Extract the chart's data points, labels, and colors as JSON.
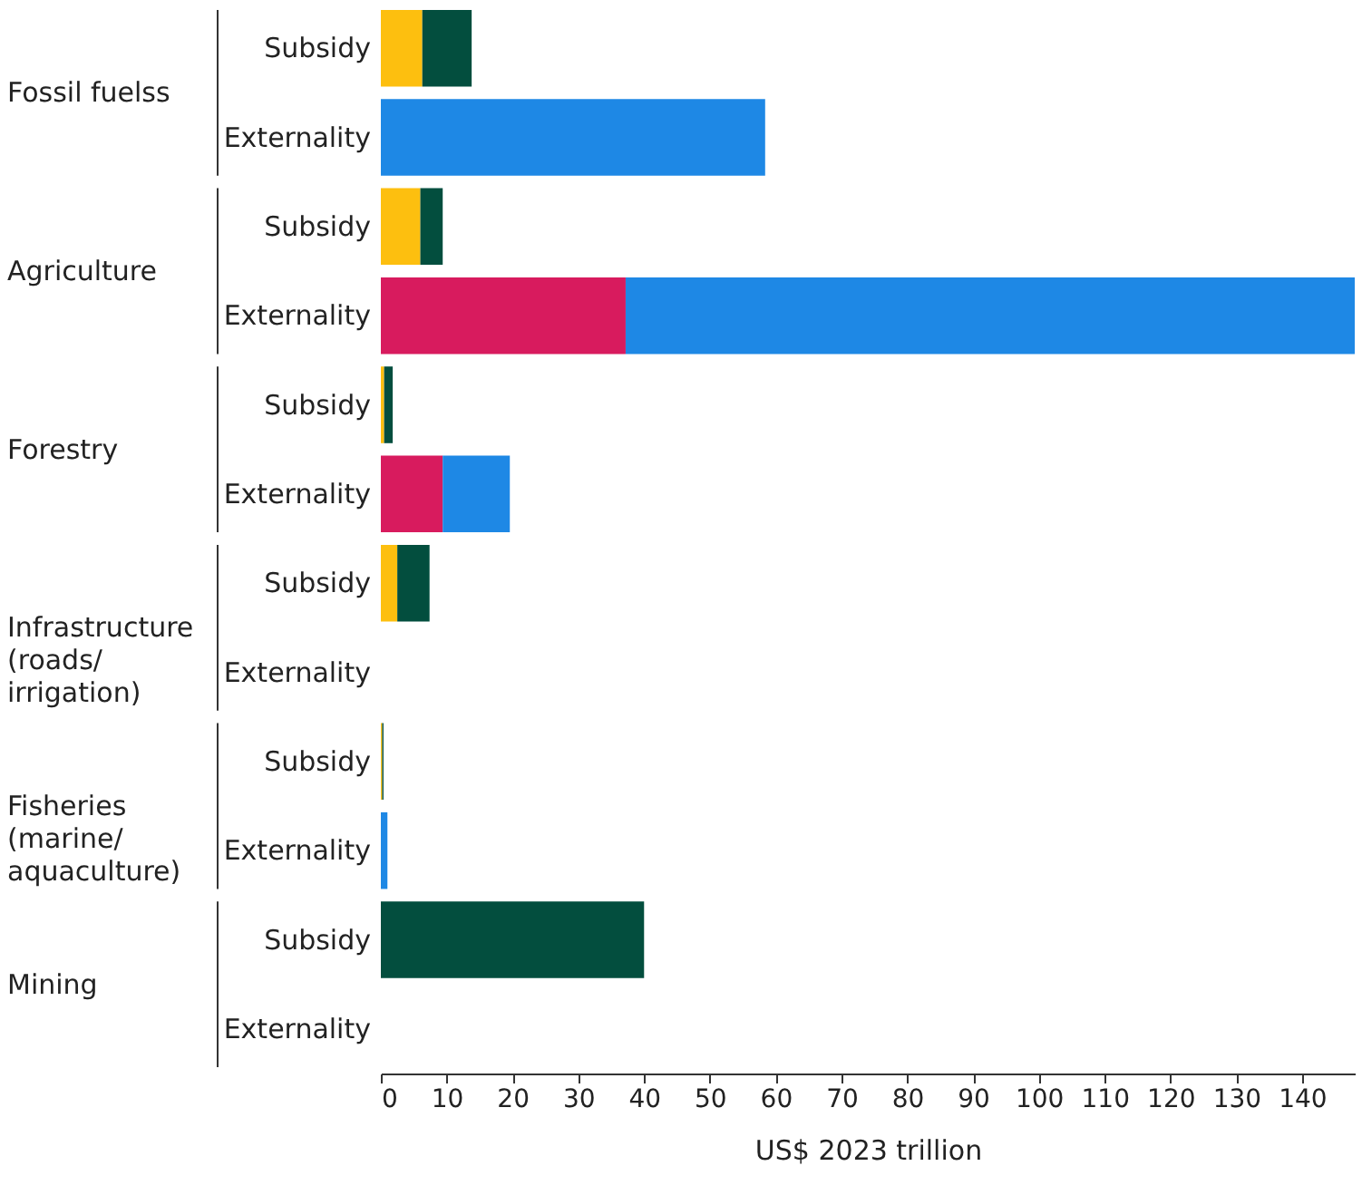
{
  "chart_data": {
    "type": "bar",
    "orientation": "horizontal",
    "stacked": true,
    "categories": [
      "Subsidy",
      "Externality",
      "Subsidy",
      "Externality",
      "Subsidy",
      "Externality",
      "Subsidy",
      "Externality",
      "Subsidy",
      "Externality",
      "Subsidy",
      "Externality"
    ],
    "annotations": [
      "Fossil fuelss",
      "Agriculture",
      "Forestry",
      "Infrastructure (roads/irrigation)",
      "Fisheries (marine/aquaculture)",
      "Mining"
    ],
    "series": [
      {
        "color": "#fdbf0f",
        "values": [
          6.3,
          null,
          6.0,
          null,
          0.5,
          null,
          2.5,
          null,
          0.2,
          null,
          null,
          null
        ]
      },
      {
        "color": "#034e3e",
        "values": [
          7.5,
          null,
          3.4,
          null,
          1.3,
          null,
          4.9,
          null,
          0.2,
          null,
          40,
          null
        ]
      },
      {
        "color": "#d81b5e",
        "values": [
          null,
          null,
          null,
          37.2,
          null,
          9.4,
          null,
          null,
          null,
          null,
          null,
          null
        ]
      },
      {
        "color": "#1e88e5",
        "values": [
          null,
          58.4,
          null,
          110.8,
          null,
          10.2,
          null,
          null,
          null,
          1.0,
          null,
          null
        ]
      }
    ],
    "xlabel": "US$ 2023 trillion",
    "xlim": [
      0,
      148
    ],
    "xticks": [
      0,
      10,
      20,
      30,
      40,
      50,
      60,
      70,
      80,
      90,
      100,
      110,
      120,
      130,
      140
    ],
    "grid": false,
    "legend": false
  }
}
